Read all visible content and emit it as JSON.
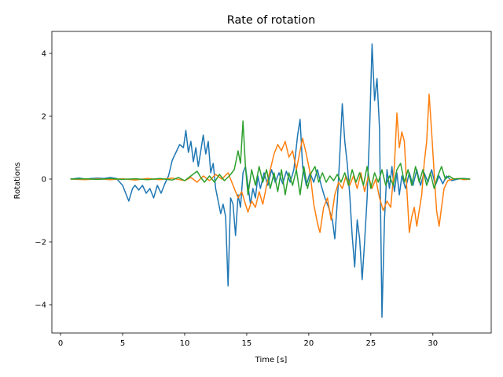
{
  "chart_data": {
    "type": "line",
    "title": "Rate of rotation",
    "xlabel": "Time [s]",
    "ylabel": "Rotations",
    "xlim": [
      -0.7,
      34.7
    ],
    "ylim": [
      -4.9,
      4.7
    ],
    "xticks": [
      0,
      5,
      10,
      15,
      20,
      25,
      30
    ],
    "yticks": [
      -4,
      -2,
      0,
      2,
      4
    ],
    "xtick_labels": [
      "0",
      "5",
      "10",
      "15",
      "20",
      "25",
      "30"
    ],
    "ytick_labels": [
      "−4",
      "−2",
      "0",
      "2",
      "4"
    ],
    "grid": false,
    "legend": "none",
    "series": [
      {
        "color": "#1f77b4",
        "points": [
          [
            0.8,
            0.0
          ],
          [
            1.5,
            0.03
          ],
          [
            2.0,
            0.0
          ],
          [
            2.5,
            0.02
          ],
          [
            3.0,
            0.03
          ],
          [
            3.5,
            0.02
          ],
          [
            4.0,
            0.05
          ],
          [
            4.5,
            0.02
          ],
          [
            5.0,
            -0.2
          ],
          [
            5.3,
            -0.5
          ],
          [
            5.5,
            -0.7
          ],
          [
            5.8,
            -0.3
          ],
          [
            6.0,
            -0.2
          ],
          [
            6.3,
            -0.35
          ],
          [
            6.6,
            -0.2
          ],
          [
            6.9,
            -0.45
          ],
          [
            7.2,
            -0.3
          ],
          [
            7.5,
            -0.6
          ],
          [
            7.8,
            -0.2
          ],
          [
            8.1,
            -0.45
          ],
          [
            8.4,
            -0.15
          ],
          [
            8.7,
            0.1
          ],
          [
            9.0,
            0.6
          ],
          [
            9.3,
            0.85
          ],
          [
            9.6,
            1.1
          ],
          [
            9.9,
            1.0
          ],
          [
            10.1,
            1.55
          ],
          [
            10.3,
            0.85
          ],
          [
            10.5,
            1.2
          ],
          [
            10.7,
            0.55
          ],
          [
            10.9,
            1.0
          ],
          [
            11.1,
            0.4
          ],
          [
            11.3,
            0.9
          ],
          [
            11.5,
            1.4
          ],
          [
            11.7,
            0.8
          ],
          [
            11.9,
            1.2
          ],
          [
            12.1,
            0.2
          ],
          [
            12.3,
            0.5
          ],
          [
            12.5,
            -0.3
          ],
          [
            12.7,
            -0.7
          ],
          [
            12.9,
            -1.1
          ],
          [
            13.1,
            -0.8
          ],
          [
            13.3,
            -1.2
          ],
          [
            13.5,
            -3.4
          ],
          [
            13.7,
            -0.6
          ],
          [
            13.9,
            -0.8
          ],
          [
            14.1,
            -1.8
          ],
          [
            14.3,
            -0.5
          ],
          [
            14.5,
            -0.9
          ],
          [
            14.7,
            0.2
          ],
          [
            14.9,
            0.4
          ],
          [
            15.1,
            -0.2
          ],
          [
            15.3,
            -0.8
          ],
          [
            15.5,
            -0.3
          ],
          [
            15.7,
            -0.6
          ],
          [
            15.9,
            0.1
          ],
          [
            16.1,
            -0.3
          ],
          [
            16.4,
            0.2
          ],
          [
            16.7,
            -0.2
          ],
          [
            17.0,
            0.3
          ],
          [
            17.3,
            -0.1
          ],
          [
            17.6,
            0.2
          ],
          [
            17.9,
            -0.15
          ],
          [
            18.2,
            0.25
          ],
          [
            18.5,
            -0.1
          ],
          [
            18.8,
            0.3
          ],
          [
            19.1,
            1.4
          ],
          [
            19.3,
            1.9
          ],
          [
            19.5,
            0.4
          ],
          [
            19.8,
            -0.2
          ],
          [
            20.1,
            0.2
          ],
          [
            20.4,
            -0.1
          ],
          [
            20.7,
            0.3
          ],
          [
            21.0,
            -0.2
          ],
          [
            21.3,
            -0.6
          ],
          [
            21.6,
            -0.9
          ],
          [
            21.9,
            -1.3
          ],
          [
            22.1,
            -1.9
          ],
          [
            22.3,
            -0.7
          ],
          [
            22.5,
            0.8
          ],
          [
            22.7,
            2.4
          ],
          [
            22.9,
            1.2
          ],
          [
            23.1,
            0.5
          ],
          [
            23.3,
            -0.5
          ],
          [
            23.5,
            -1.8
          ],
          [
            23.7,
            -2.8
          ],
          [
            23.9,
            -1.3
          ],
          [
            24.1,
            -1.9
          ],
          [
            24.3,
            -3.2
          ],
          [
            24.5,
            -2.0
          ],
          [
            24.7,
            -0.6
          ],
          [
            24.9,
            1.5
          ],
          [
            25.1,
            4.3
          ],
          [
            25.3,
            2.5
          ],
          [
            25.5,
            3.2
          ],
          [
            25.7,
            1.6
          ],
          [
            25.9,
            -4.4
          ],
          [
            26.1,
            -1.3
          ],
          [
            26.3,
            0.3
          ],
          [
            26.5,
            -0.3
          ],
          [
            26.7,
            0.4
          ],
          [
            26.9,
            -0.4
          ],
          [
            27.1,
            0.2
          ],
          [
            27.3,
            -0.5
          ],
          [
            27.5,
            0.1
          ],
          [
            27.8,
            -0.3
          ],
          [
            28.1,
            0.2
          ],
          [
            28.4,
            -0.2
          ],
          [
            28.7,
            0.3
          ],
          [
            29.0,
            -0.2
          ],
          [
            29.3,
            0.2
          ],
          [
            29.6,
            -0.1
          ],
          [
            29.9,
            0.3
          ],
          [
            30.2,
            -0.2
          ],
          [
            30.5,
            0.1
          ],
          [
            30.8,
            -0.15
          ],
          [
            31.1,
            0.1
          ],
          [
            31.5,
            -0.05
          ],
          [
            32.0,
            0.0
          ],
          [
            32.5,
            0.02
          ],
          [
            33.0,
            0.0
          ]
        ]
      },
      {
        "color": "#ff7f0e",
        "points": [
          [
            0.8,
            0.0
          ],
          [
            2.0,
            -0.02
          ],
          [
            3.0,
            0.01
          ],
          [
            4.0,
            -0.02
          ],
          [
            5.0,
            0.01
          ],
          [
            6.0,
            -0.03
          ],
          [
            7.0,
            0.02
          ],
          [
            8.0,
            -0.02
          ],
          [
            9.0,
            0.03
          ],
          [
            10.0,
            -0.05
          ],
          [
            10.5,
            0.05
          ],
          [
            11.0,
            -0.1
          ],
          [
            11.5,
            0.1
          ],
          [
            12.0,
            -0.05
          ],
          [
            12.5,
            0.15
          ],
          [
            13.0,
            0.0
          ],
          [
            13.5,
            0.2
          ],
          [
            14.0,
            -0.3
          ],
          [
            14.3,
            -0.6
          ],
          [
            14.6,
            -0.4
          ],
          [
            14.9,
            -0.8
          ],
          [
            15.1,
            -1.05
          ],
          [
            15.4,
            -0.7
          ],
          [
            15.7,
            -0.9
          ],
          [
            16.0,
            -0.4
          ],
          [
            16.3,
            -0.8
          ],
          [
            16.6,
            -0.2
          ],
          [
            16.9,
            0.3
          ],
          [
            17.2,
            0.8
          ],
          [
            17.5,
            1.1
          ],
          [
            17.8,
            0.9
          ],
          [
            18.1,
            1.2
          ],
          [
            18.4,
            0.7
          ],
          [
            18.7,
            0.9
          ],
          [
            19.0,
            0.3
          ],
          [
            19.3,
            0.9
          ],
          [
            19.5,
            1.3
          ],
          [
            19.8,
            0.8
          ],
          [
            20.1,
            0.2
          ],
          [
            20.4,
            -0.8
          ],
          [
            20.7,
            -1.4
          ],
          [
            20.9,
            -1.7
          ],
          [
            21.2,
            -0.9
          ],
          [
            21.5,
            -0.6
          ],
          [
            21.8,
            -1.3
          ],
          [
            22.1,
            -0.5
          ],
          [
            22.4,
            -0.1
          ],
          [
            22.7,
            -0.3
          ],
          [
            23.0,
            0.1
          ],
          [
            23.3,
            -0.2
          ],
          [
            23.6,
            0.1
          ],
          [
            23.9,
            -0.3
          ],
          [
            24.2,
            0.2
          ],
          [
            24.5,
            -0.4
          ],
          [
            24.8,
            0.1
          ],
          [
            25.1,
            -0.3
          ],
          [
            25.4,
            0.0
          ],
          [
            25.7,
            -0.6
          ],
          [
            26.0,
            -1.0
          ],
          [
            26.3,
            -0.7
          ],
          [
            26.6,
            -0.9
          ],
          [
            26.9,
            0.4
          ],
          [
            27.1,
            2.1
          ],
          [
            27.3,
            1.0
          ],
          [
            27.5,
            1.5
          ],
          [
            27.7,
            1.2
          ],
          [
            27.9,
            -0.3
          ],
          [
            28.1,
            -1.7
          ],
          [
            28.3,
            -1.2
          ],
          [
            28.5,
            -0.9
          ],
          [
            28.7,
            -1.5
          ],
          [
            28.9,
            -1.0
          ],
          [
            29.1,
            -0.5
          ],
          [
            29.3,
            0.5
          ],
          [
            29.5,
            1.2
          ],
          [
            29.7,
            2.7
          ],
          [
            29.9,
            1.5
          ],
          [
            30.1,
            0.2
          ],
          [
            30.3,
            -1.0
          ],
          [
            30.5,
            -1.5
          ],
          [
            30.7,
            -0.9
          ],
          [
            30.9,
            -0.3
          ],
          [
            31.2,
            -0.05
          ],
          [
            31.6,
            0.0
          ],
          [
            32.0,
            0.02
          ],
          [
            32.5,
            -0.02
          ],
          [
            33.0,
            0.0
          ]
        ]
      },
      {
        "color": "#2ca02c",
        "points": [
          [
            0.8,
            0.0
          ],
          [
            2.0,
            0.01
          ],
          [
            3.0,
            -0.01
          ],
          [
            4.0,
            0.02
          ],
          [
            5.0,
            -0.01
          ],
          [
            6.0,
            0.01
          ],
          [
            7.0,
            -0.02
          ],
          [
            8.0,
            0.02
          ],
          [
            9.0,
            -0.03
          ],
          [
            9.5,
            0.05
          ],
          [
            10.0,
            -0.05
          ],
          [
            10.5,
            0.1
          ],
          [
            11.0,
            0.25
          ],
          [
            11.3,
            0.05
          ],
          [
            11.6,
            -0.1
          ],
          [
            12.0,
            0.1
          ],
          [
            12.4,
            -0.1
          ],
          [
            12.8,
            0.15
          ],
          [
            13.2,
            -0.05
          ],
          [
            13.6,
            0.1
          ],
          [
            14.0,
            0.3
          ],
          [
            14.3,
            0.9
          ],
          [
            14.5,
            0.5
          ],
          [
            14.7,
            1.85
          ],
          [
            14.9,
            0.4
          ],
          [
            15.1,
            -0.5
          ],
          [
            15.4,
            0.3
          ],
          [
            15.7,
            -0.2
          ],
          [
            16.0,
            0.4
          ],
          [
            16.3,
            -0.1
          ],
          [
            16.6,
            0.3
          ],
          [
            16.9,
            -0.3
          ],
          [
            17.2,
            0.2
          ],
          [
            17.5,
            -0.4
          ],
          [
            17.8,
            0.3
          ],
          [
            18.1,
            -0.5
          ],
          [
            18.4,
            0.2
          ],
          [
            18.7,
            -0.2
          ],
          [
            19.0,
            0.3
          ],
          [
            19.3,
            -0.5
          ],
          [
            19.6,
            0.4
          ],
          [
            19.9,
            -0.3
          ],
          [
            20.2,
            0.2
          ],
          [
            20.5,
            0.4
          ],
          [
            20.8,
            -0.1
          ],
          [
            21.1,
            0.2
          ],
          [
            21.4,
            -0.1
          ],
          [
            21.7,
            0.1
          ],
          [
            22.0,
            -0.05
          ],
          [
            22.3,
            0.15
          ],
          [
            22.6,
            -0.1
          ],
          [
            22.9,
            0.2
          ],
          [
            23.2,
            -0.2
          ],
          [
            23.5,
            0.3
          ],
          [
            23.8,
            -0.1
          ],
          [
            24.1,
            0.2
          ],
          [
            24.4,
            -0.2
          ],
          [
            24.7,
            0.4
          ],
          [
            25.0,
            -0.3
          ],
          [
            25.3,
            0.2
          ],
          [
            25.6,
            -0.1
          ],
          [
            25.9,
            0.3
          ],
          [
            26.2,
            -0.2
          ],
          [
            26.5,
            0.1
          ],
          [
            26.8,
            -0.2
          ],
          [
            27.1,
            0.3
          ],
          [
            27.4,
            0.5
          ],
          [
            27.7,
            -0.1
          ],
          [
            28.0,
            0.3
          ],
          [
            28.3,
            -0.2
          ],
          [
            28.6,
            0.4
          ],
          [
            28.9,
            -0.1
          ],
          [
            29.2,
            0.3
          ],
          [
            29.5,
            -0.2
          ],
          [
            29.8,
            0.2
          ],
          [
            30.1,
            -0.3
          ],
          [
            30.4,
            0.1
          ],
          [
            30.7,
            0.4
          ],
          [
            31.0,
            0.0
          ],
          [
            31.3,
            0.1
          ],
          [
            31.7,
            0.0
          ],
          [
            32.2,
            0.02
          ],
          [
            33.0,
            0.0
          ]
        ]
      }
    ]
  }
}
